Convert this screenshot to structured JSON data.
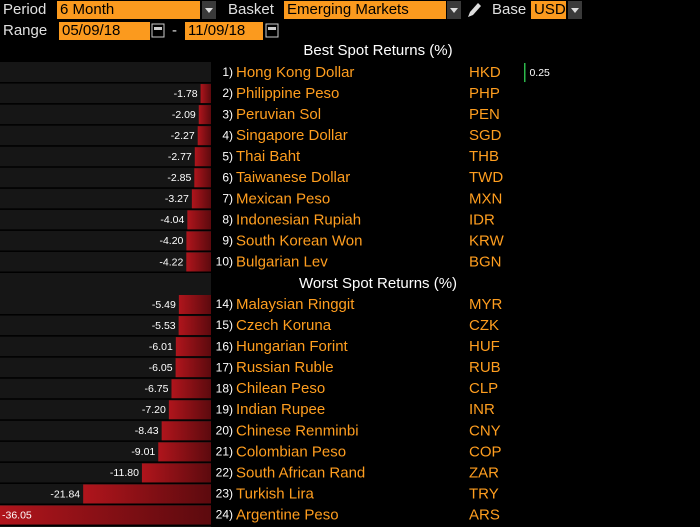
{
  "header": {
    "period_label": "Period",
    "period": "6 Month",
    "basket_label": "Basket",
    "basket": "Emerging Markets",
    "base_label": "Base",
    "base": "USD",
    "range_label": "Range",
    "range_start": "05/09/18",
    "range_sep": "-",
    "range_end": "11/09/18"
  },
  "best": {
    "title": "Best Spot Returns (%)",
    "rows": [
      {
        "rank": "1)",
        "name": "Hong Kong Dollar",
        "code": "HKD",
        "value": 0.25
      },
      {
        "rank": "2)",
        "name": "Philippine Peso",
        "code": "PHP",
        "value": -1.78
      },
      {
        "rank": "3)",
        "name": "Peruvian Sol",
        "code": "PEN",
        "value": -2.09
      },
      {
        "rank": "4)",
        "name": "Singapore Dollar",
        "code": "SGD",
        "value": -2.27
      },
      {
        "rank": "5)",
        "name": "Thai Baht",
        "code": "THB",
        "value": -2.77
      },
      {
        "rank": "6)",
        "name": "Taiwanese Dollar",
        "code": "TWD",
        "value": -2.85
      },
      {
        "rank": "7)",
        "name": "Mexican Peso",
        "code": "MXN",
        "value": -3.27
      },
      {
        "rank": "8)",
        "name": "Indonesian Rupiah",
        "code": "IDR",
        "value": -4.04
      },
      {
        "rank": "9)",
        "name": "South Korean Won",
        "code": "KRW",
        "value": -4.2,
        "label": "-4.20"
      },
      {
        "rank": "10)",
        "name": "Bulgarian Lev",
        "code": "BGN",
        "value": -4.22
      }
    ]
  },
  "worst": {
    "title": "Worst Spot Returns (%)",
    "rows": [
      {
        "rank": "14)",
        "name": "Malaysian Ringgit",
        "code": "MYR",
        "value": -5.49
      },
      {
        "rank": "15)",
        "name": "Czech Koruna",
        "code": "CZK",
        "value": -5.53
      },
      {
        "rank": "16)",
        "name": "Hungarian Forint",
        "code": "HUF",
        "value": -6.01
      },
      {
        "rank": "17)",
        "name": "Russian Ruble",
        "code": "RUB",
        "value": -6.05
      },
      {
        "rank": "18)",
        "name": "Chilean Peso",
        "code": "CLP",
        "value": -6.75
      },
      {
        "rank": "19)",
        "name": "Indian Rupee",
        "code": "INR",
        "value": -7.2,
        "label": "-7.20"
      },
      {
        "rank": "20)",
        "name": "Chinese Renminbi",
        "code": "CNY",
        "value": -8.43
      },
      {
        "rank": "21)",
        "name": "Colombian Peso",
        "code": "COP",
        "value": -9.01
      },
      {
        "rank": "22)",
        "name": "South African Rand",
        "code": "ZAR",
        "value": -11.8,
        "label": "-11.80"
      },
      {
        "rank": "23)",
        "name": "Turkish Lira",
        "code": "TRY",
        "value": -21.84
      },
      {
        "rank": "24)",
        "name": "Argentine Peso",
        "code": "ARS",
        "value": -36.05
      }
    ]
  }
}
